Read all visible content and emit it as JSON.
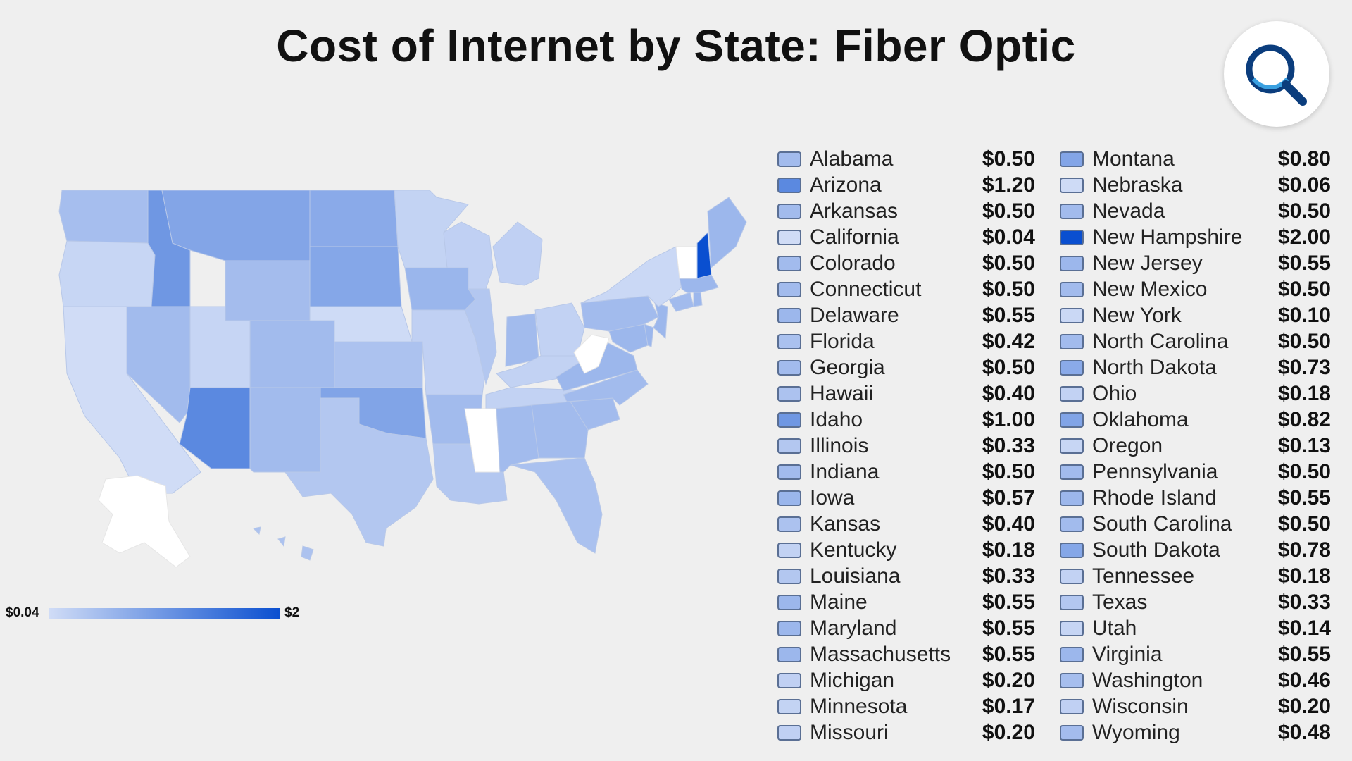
{
  "title": "Cost of Internet by State: Fiber Optic",
  "logo": {
    "icon": "magnifier-icon",
    "color": "#0b3d7d",
    "accent": "#3aa0e0"
  },
  "scale": {
    "min_label": "$0.04",
    "max_label": "$2",
    "min_color": "#d0dcf6",
    "max_color": "#0a4fd0"
  },
  "chart_data": {
    "type": "choropleth map",
    "title": "Cost of Internet by State: Fiber Optic",
    "unit": "$",
    "range": [
      0.04,
      2
    ],
    "states": [
      {
        "name": "Alabama",
        "label": "$0.50",
        "value": 0.5
      },
      {
        "name": "Arizona",
        "label": "$1.20",
        "value": 1.2
      },
      {
        "name": "Arkansas",
        "label": "$0.50",
        "value": 0.5
      },
      {
        "name": "California",
        "label": "$0.04",
        "value": 0.04
      },
      {
        "name": "Colorado",
        "label": "$0.50",
        "value": 0.5
      },
      {
        "name": "Connecticut",
        "label": "$0.50",
        "value": 0.5
      },
      {
        "name": "Delaware",
        "label": "$0.55",
        "value": 0.55
      },
      {
        "name": "Florida",
        "label": "$0.42",
        "value": 0.42
      },
      {
        "name": "Georgia",
        "label": "$0.50",
        "value": 0.5
      },
      {
        "name": "Hawaii",
        "label": "$0.40",
        "value": 0.4
      },
      {
        "name": "Idaho",
        "label": "$1.00",
        "value": 1.0
      },
      {
        "name": "Illinois",
        "label": "$0.33",
        "value": 0.33
      },
      {
        "name": "Indiana",
        "label": "$0.50",
        "value": 0.5
      },
      {
        "name": "Iowa",
        "label": "$0.57",
        "value": 0.57
      },
      {
        "name": "Kansas",
        "label": "$0.40",
        "value": 0.4
      },
      {
        "name": "Kentucky",
        "label": "$0.18",
        "value": 0.18
      },
      {
        "name": "Louisiana",
        "label": "$0.33",
        "value": 0.33
      },
      {
        "name": "Maine",
        "label": "$0.55",
        "value": 0.55
      },
      {
        "name": "Maryland",
        "label": "$0.55",
        "value": 0.55
      },
      {
        "name": "Massachusetts",
        "label": "$0.55",
        "value": 0.55
      },
      {
        "name": "Michigan",
        "label": "$0.20",
        "value": 0.2
      },
      {
        "name": "Minnesota",
        "label": "$0.17",
        "value": 0.17
      },
      {
        "name": "Missouri",
        "label": "$0.20",
        "value": 0.2
      },
      {
        "name": "Montana",
        "label": "$0.80",
        "value": 0.8
      },
      {
        "name": "Nebraska",
        "label": "$0.06",
        "value": 0.06
      },
      {
        "name": "Nevada",
        "label": "$0.50",
        "value": 0.5
      },
      {
        "name": "New Hampshire",
        "label": "$2.00",
        "value": 2.0
      },
      {
        "name": "New Jersey",
        "label": "$0.55",
        "value": 0.55
      },
      {
        "name": "New Mexico",
        "label": "$0.50",
        "value": 0.5
      },
      {
        "name": "New York",
        "label": "$0.10",
        "value": 0.1
      },
      {
        "name": "North Carolina",
        "label": "$0.50",
        "value": 0.5
      },
      {
        "name": "North Dakota",
        "label": "$0.73",
        "value": 0.73
      },
      {
        "name": "Ohio",
        "label": "$0.18",
        "value": 0.18
      },
      {
        "name": "Oklahoma",
        "label": "$0.82",
        "value": 0.82
      },
      {
        "name": "Oregon",
        "label": "$0.13",
        "value": 0.13
      },
      {
        "name": "Pennsylvania",
        "label": "$0.50",
        "value": 0.5
      },
      {
        "name": "Rhode Island",
        "label": "$0.55",
        "value": 0.55
      },
      {
        "name": "South Carolina",
        "label": "$0.50",
        "value": 0.5
      },
      {
        "name": "South Dakota",
        "label": "$0.78",
        "value": 0.78
      },
      {
        "name": "Tennessee",
        "label": "$0.18",
        "value": 0.18
      },
      {
        "name": "Texas",
        "label": "$0.33",
        "value": 0.33
      },
      {
        "name": "Utah",
        "label": "$0.14",
        "value": 0.14
      },
      {
        "name": "Virginia",
        "label": "$0.55",
        "value": 0.55
      },
      {
        "name": "Washington",
        "label": "$0.46",
        "value": 0.46
      },
      {
        "name": "Wisconsin",
        "label": "$0.20",
        "value": 0.2
      },
      {
        "name": "Wyoming",
        "label": "$0.48",
        "value": 0.48
      }
    ],
    "no_data_states": [
      "Alaska",
      "Mississippi",
      "Vermont",
      "West Virginia"
    ]
  }
}
